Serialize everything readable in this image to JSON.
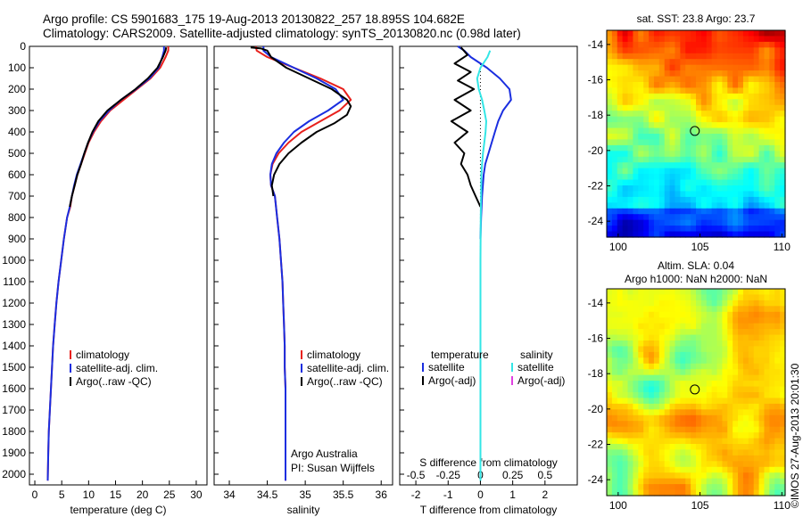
{
  "header": {
    "line1": "Argo profile: CS 5901683_175 19-Aug-2013 20130822_257 18.895S 104.682E",
    "line2": "Climatology: CARS2009. Satellite-adjusted climatology: synTS_20130820.nc (0.98d later)"
  },
  "colors": {
    "climatology": "#e8201c",
    "satellite": "#1a2ee0",
    "argo": "#000000",
    "sal_satellite": "#33e6e6",
    "sal_argo": "#e040e0"
  },
  "chart_data": [
    {
      "type": "line",
      "name": "temperature-profile",
      "xlabel": "temperature (deg C)",
      "xlim": [
        -1,
        32
      ],
      "ylim": [
        2050,
        0
      ],
      "xticks": [
        0,
        5,
        10,
        15,
        20,
        25,
        30
      ],
      "yticks": [
        0,
        100,
        200,
        300,
        400,
        500,
        600,
        700,
        800,
        900,
        1000,
        1100,
        1200,
        1300,
        1400,
        1500,
        1600,
        1700,
        1800,
        1900,
        2000
      ],
      "legend": [
        "climatology",
        "satellite-adj. clim.",
        "Argo(..raw -QC)"
      ],
      "series": [
        {
          "name": "climatology",
          "color": "#e8201c",
          "x": [
            24.8,
            24.8,
            24.3,
            23.3,
            21.5,
            19.0,
            16.5,
            14.0,
            12.3,
            11.0,
            10.0,
            9.3,
            8.6,
            7.9,
            7.4,
            6.9,
            6.6,
            6.0,
            5.4,
            4.9,
            4.4,
            4.0,
            3.7,
            3.4,
            3.2,
            3.0,
            2.8,
            2.6,
            2.5,
            2.4
          ],
          "y": [
            0,
            20,
            50,
            100,
            150,
            200,
            250,
            300,
            350,
            400,
            450,
            500,
            550,
            600,
            650,
            700,
            750,
            800,
            900,
            1000,
            1100,
            1200,
            1300,
            1400,
            1500,
            1600,
            1700,
            1800,
            1900,
            2030
          ]
        },
        {
          "name": "satellite-adj. clim.",
          "color": "#1a2ee0",
          "x": [
            24.0,
            24.0,
            23.7,
            23.0,
            21.3,
            18.8,
            16.0,
            13.8,
            12.0,
            10.8,
            9.9,
            9.2,
            8.5,
            7.8,
            7.3,
            6.9,
            6.5,
            6.0,
            5.4,
            4.9,
            4.4,
            4.0,
            3.7,
            3.4,
            3.2,
            3.0,
            2.8,
            2.6,
            2.5,
            2.4
          ],
          "y": [
            0,
            20,
            50,
            100,
            150,
            200,
            250,
            300,
            350,
            400,
            450,
            500,
            550,
            600,
            650,
            700,
            750,
            800,
            900,
            1000,
            1100,
            1200,
            1300,
            1400,
            1500,
            1600,
            1700,
            1800,
            1900,
            2030
          ]
        },
        {
          "name": "Argo(..raw -QC)",
          "color": "#000000",
          "x": [
            24.4,
            24.3,
            23.8,
            22.8,
            21.0,
            18.7,
            16.0,
            13.5,
            11.8,
            10.7,
            9.9,
            9.2,
            8.6,
            7.9,
            7.4,
            6.9,
            6.5
          ],
          "y": [
            5,
            20,
            50,
            100,
            150,
            200,
            250,
            300,
            350,
            400,
            450,
            500,
            550,
            600,
            650,
            700,
            750
          ]
        }
      ]
    },
    {
      "type": "line",
      "name": "salinity-profile",
      "xlabel": "salinity",
      "xlim": [
        33.8,
        36.15
      ],
      "ylim": [
        2050,
        0
      ],
      "xticks": [
        34,
        34.5,
        35,
        35.5,
        36
      ],
      "legend": [
        "climatology",
        "satellite-adj. clim.",
        "Argo(..raw -QC)"
      ],
      "annotations": [
        "Argo Australia",
        "PI: Susan Wijffels"
      ],
      "series": [
        {
          "name": "climatology",
          "color": "#e8201c",
          "x": [
            34.35,
            34.36,
            34.5,
            34.85,
            35.2,
            35.5,
            35.6,
            35.45,
            35.2,
            34.95,
            34.78,
            34.65,
            34.57,
            34.54,
            34.55,
            34.6,
            34.63,
            34.66,
            34.68,
            34.7,
            34.71,
            34.72,
            34.73,
            34.73,
            34.74,
            34.74,
            34.74
          ],
          "y": [
            0,
            20,
            50,
            100,
            150,
            200,
            250,
            300,
            350,
            400,
            450,
            500,
            550,
            600,
            650,
            700,
            800,
            900,
            1000,
            1100,
            1200,
            1300,
            1400,
            1500,
            1600,
            1800,
            2030
          ]
        },
        {
          "name": "satellite-adj. clim.",
          "color": "#1a2ee0",
          "x": [
            34.45,
            34.45,
            34.55,
            34.85,
            35.15,
            35.4,
            35.5,
            35.3,
            35.05,
            34.85,
            34.72,
            34.62,
            34.56,
            34.54,
            34.55,
            34.6,
            34.63,
            34.66,
            34.68,
            34.7,
            34.71,
            34.72,
            34.73,
            34.73,
            34.74,
            34.74,
            34.74
          ],
          "y": [
            0,
            20,
            50,
            100,
            150,
            200,
            250,
            300,
            350,
            400,
            450,
            500,
            550,
            600,
            650,
            700,
            800,
            900,
            1000,
            1100,
            1200,
            1300,
            1400,
            1500,
            1600,
            1800,
            2030
          ]
        },
        {
          "name": "Argo(..raw -QC)",
          "color": "#000000",
          "x": [
            34.28,
            34.42,
            34.5,
            34.55,
            34.75,
            35.05,
            35.35,
            35.55,
            35.6,
            35.55,
            35.38,
            35.15,
            34.95,
            34.78,
            34.66,
            34.59,
            34.56,
            34.58
          ],
          "y": [
            5,
            10,
            20,
            50,
            100,
            150,
            200,
            250,
            280,
            320,
            360,
            400,
            450,
            500,
            550,
            600,
            650,
            700
          ]
        }
      ]
    },
    {
      "type": "line",
      "name": "difference-from-climatology",
      "xlabel": "T difference from climatology",
      "x2label": "S difference from climatology",
      "xlim": [
        -2.5,
        3
      ],
      "ylim": [
        2050,
        0
      ],
      "xticks": [
        -2,
        -1,
        0,
        1,
        2
      ],
      "x2lim": [
        -0.625,
        0.75
      ],
      "x2ticks": [
        -0.5,
        -0.25,
        0,
        0.25,
        0.5
      ],
      "x2ticklabels": [
        "-0.5",
        "-0.25",
        "0",
        "0.25",
        "0.5"
      ],
      "legend_titles": [
        "temperature",
        "salinity"
      ],
      "legend": [
        "satellite",
        "Argo(-adj)",
        "satellite",
        "Argo(-adj)"
      ],
      "series": [
        {
          "name": "satellite",
          "group": "temperature",
          "color": "#1a2ee0",
          "x": [
            -0.7,
            -0.5,
            -0.3,
            0.2,
            0.6,
            0.9,
            0.95,
            0.7,
            0.55,
            0.45,
            0.35,
            0.25,
            0.15,
            0.1,
            0.05,
            0.02,
            0
          ],
          "y": [
            0,
            20,
            50,
            100,
            150,
            200,
            250,
            300,
            350,
            400,
            450,
            500,
            550,
            600,
            700,
            800,
            900
          ]
        },
        {
          "name": "Argo(-adj)",
          "group": "temperature",
          "color": "#000000",
          "x": [
            -0.6,
            -0.4,
            -0.8,
            -0.3,
            -0.7,
            -0.2,
            -0.8,
            -0.3,
            -0.9,
            -0.4,
            -0.8,
            -0.5,
            -0.6,
            -0.4,
            -0.3,
            -0.15,
            0
          ],
          "y": [
            5,
            40,
            80,
            120,
            160,
            200,
            250,
            300,
            350,
            400,
            450,
            500,
            550,
            600,
            650,
            700,
            750
          ]
        },
        {
          "name": "satellite",
          "group": "salinity",
          "color": "#33e6e6",
          "x": [
            0.3,
            0.22,
            0.0,
            -0.1,
            -0.05,
            0.05,
            0.12,
            0.18,
            0.16,
            0.12,
            0.08,
            0.05,
            0.03,
            0.02,
            0.01,
            0,
            0,
            0
          ],
          "y": [
            20,
            50,
            100,
            150,
            200,
            250,
            300,
            350,
            400,
            450,
            500,
            550,
            600,
            700,
            800,
            1000,
            1500,
            2030
          ]
        }
      ]
    },
    {
      "type": "heatmap",
      "name": "sst-map",
      "title": "sat. SST: 23.8 Argo: 23.7",
      "xlim": [
        99.3,
        110.2
      ],
      "ylim": [
        -24.9,
        -13.2
      ],
      "xticks": [
        100,
        105,
        110
      ],
      "yticks": [
        -14,
        -16,
        -18,
        -20,
        -22,
        -24
      ],
      "marker": {
        "lon": 104.682,
        "lat": -18.895
      }
    },
    {
      "type": "heatmap",
      "name": "sla-map",
      "title": "Altim. SLA: 0.04",
      "subtitle": "Argo h1000: NaN h2000: NaN",
      "xlim": [
        99.3,
        110.2
      ],
      "ylim": [
        -24.9,
        -13.2
      ],
      "xticks": [
        100,
        105,
        110
      ],
      "yticks": [
        -14,
        -16,
        -18,
        -20,
        -22,
        -24
      ],
      "marker": {
        "lon": 104.682,
        "lat": -18.895
      }
    }
  ],
  "footer": {
    "stamp": "©IMOS 27-Aug-2013 20:01:30"
  }
}
